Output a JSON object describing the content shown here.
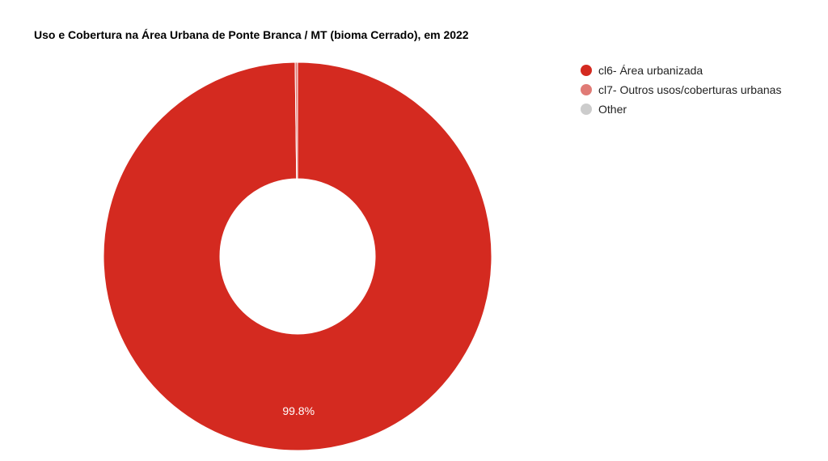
{
  "chart_data": {
    "type": "pie",
    "title": "Uso e Cobertura na Área Urbana de Ponte Branca / MT (bioma Cerrado), em 2022",
    "donut": true,
    "legend_position": "right",
    "slices": [
      {
        "name": "cl6- Área urbanizada",
        "value": 99.8,
        "color": "#d42a20",
        "label": "99.8%"
      },
      {
        "name": "cl7- Outros usos/coberturas urbanas",
        "value": 0.2,
        "color": "#e07b76",
        "label": ""
      },
      {
        "name": "Other",
        "value": 0.0,
        "color": "#cccccc",
        "label": ""
      }
    ]
  }
}
